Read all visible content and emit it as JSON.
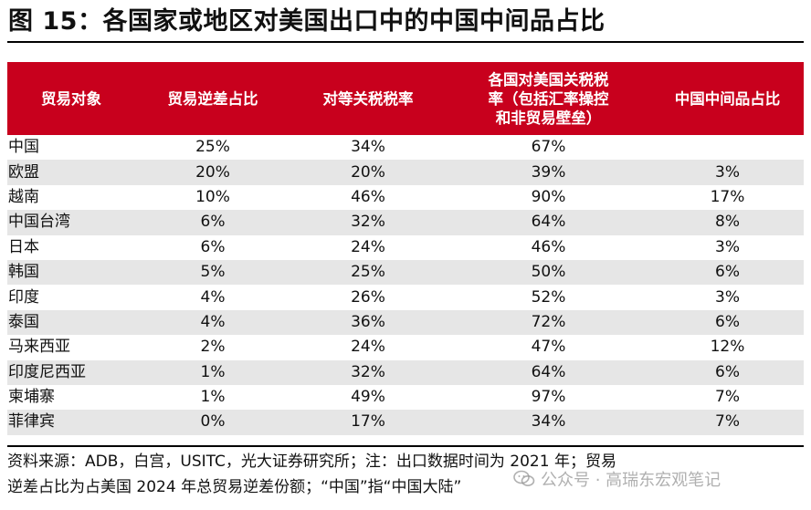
{
  "title": "图 15：各国家或地区对美国出口中的中国中间品占比",
  "table": {
    "headers": [
      "贸易对象",
      "贸易逆差占比",
      "对等关税税率",
      "各国对美国关税税\n率（包括汇率操控\n和非贸易壁垒）",
      "中国中间品占比"
    ],
    "rows": [
      [
        "中国",
        "25%",
        "34%",
        "67%",
        ""
      ],
      [
        "欧盟",
        "20%",
        "20%",
        "39%",
        "3%"
      ],
      [
        "越南",
        "10%",
        "46%",
        "90%",
        "17%"
      ],
      [
        "中国台湾",
        "6%",
        "32%",
        "64%",
        "8%"
      ],
      [
        "日本",
        "6%",
        "24%",
        "46%",
        "3%"
      ],
      [
        "韩国",
        "5%",
        "25%",
        "50%",
        "6%"
      ],
      [
        "印度",
        "4%",
        "26%",
        "52%",
        "3%"
      ],
      [
        "泰国",
        "4%",
        "36%",
        "72%",
        "6%"
      ],
      [
        "马来西亚",
        "2%",
        "24%",
        "47%",
        "12%"
      ],
      [
        "印度尼西亚",
        "1%",
        "32%",
        "64%",
        "6%"
      ],
      [
        "柬埔寨",
        "1%",
        "49%",
        "97%",
        "7%"
      ],
      [
        "菲律宾",
        "0%",
        "17%",
        "34%",
        "7%"
      ]
    ]
  },
  "source": {
    "line1": "资料来源：ADB，白宫，USITC，光大证券研究所；注：出口数据时间为 2021 年；贸易",
    "line2": "逆差占比为占美国 2024 年总贸易逆差份额；“中国”指“中国大陆”"
  },
  "watermark": {
    "text": "公众号 · 高瑞东宏观笔记",
    "icon": "wechat-icon"
  },
  "colors": {
    "header_bg": "#c8001d",
    "shade_row": "#e6e6e6"
  }
}
